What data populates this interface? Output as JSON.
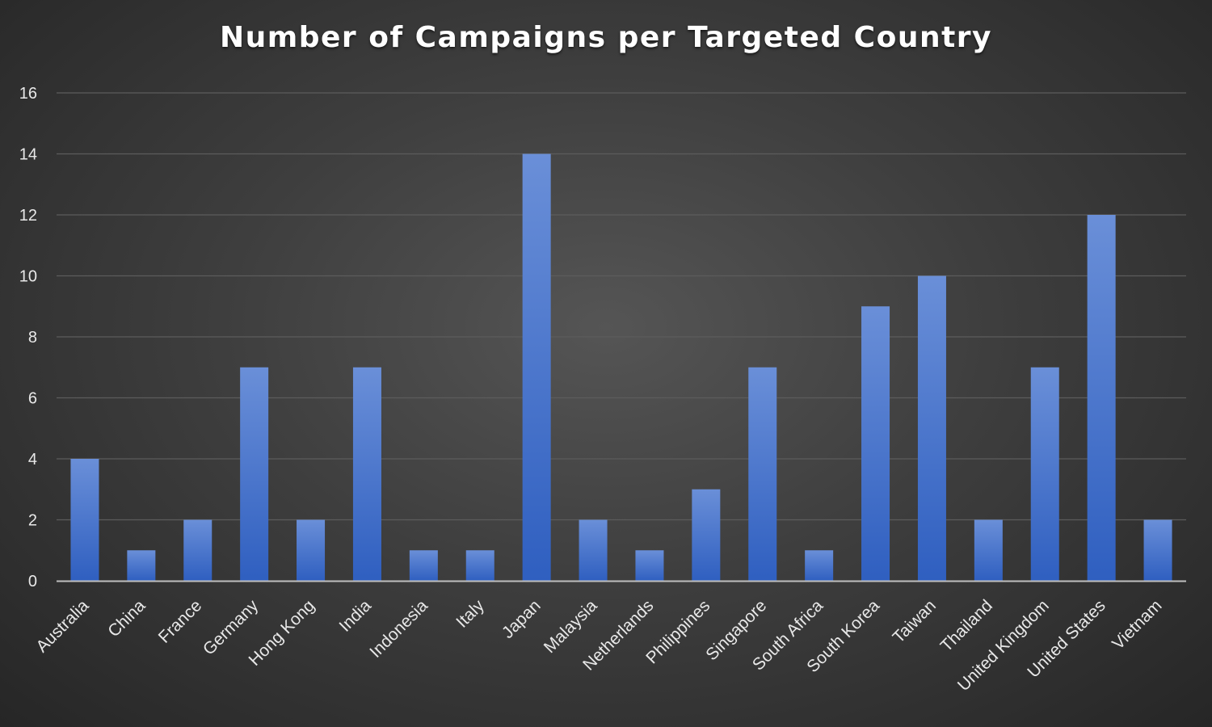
{
  "colors": {
    "bar_top": "#6a8fd8",
    "bar_bottom": "#2f5fc0",
    "gridline": "#5c5c5c",
    "axis_line": "#bfbfbf",
    "label_text": "#e8e8e8",
    "title_text": "#ffffff"
  },
  "chart_data": {
    "type": "bar",
    "title": "Number of Campaigns per Targeted Country",
    "xlabel": "",
    "ylabel": "",
    "ylim": [
      0,
      16
    ],
    "yticks": [
      "0",
      "2",
      "4",
      "6",
      "8",
      "10",
      "12",
      "14",
      "16"
    ],
    "grid": true,
    "legend": "none",
    "categories": [
      "Australia",
      "China",
      "France",
      "Germany",
      "Hong Kong",
      "India",
      "Indonesia",
      "Italy",
      "Japan",
      "Malaysia",
      "Netherlands",
      "Philippines",
      "Singapore",
      "South Africa",
      "South Korea",
      "Taiwan",
      "Thailand",
      "United Kingdom",
      "United States",
      "Vietnam"
    ],
    "values": [
      4,
      1,
      2,
      7,
      2,
      7,
      1,
      1,
      14,
      2,
      1,
      3,
      7,
      1,
      9,
      10,
      2,
      7,
      12,
      2
    ]
  }
}
